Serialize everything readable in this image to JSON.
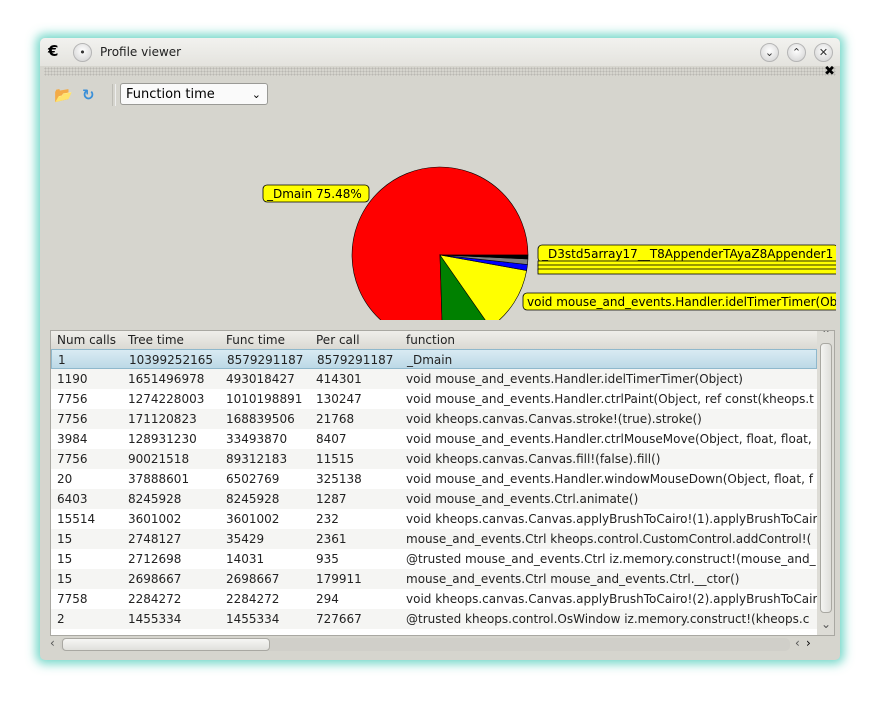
{
  "window": {
    "title": "Profile viewer",
    "icons": [
      "app-logo-icon",
      "pin-icon",
      "minimize-icon",
      "maximize-icon",
      "close-icon"
    ]
  },
  "toolbar": {
    "open_icon": "folder-open-icon",
    "refresh_icon": "refresh-icon",
    "mode_select": "Function time"
  },
  "chart_data": {
    "type": "pie",
    "slices": [
      {
        "label": "_Dmain 75.48%",
        "value": 75.48,
        "color": "#ff0000"
      },
      {
        "label": "void mouse_and_events.Handler.ctrlPaint(Object, ref const",
        "value": 9.2,
        "color": "#008000"
      },
      {
        "label": "void mouse_and_events.Handler.idelTimerTimer(Ob",
        "value": 12.5,
        "color": "#ffff00"
      },
      {
        "label": "",
        "value": 1.1,
        "color": "#0000ff"
      },
      {
        "label": "",
        "value": 1.0,
        "color": "#808080"
      },
      {
        "label": "_D3std5array17__T8AppenderTAyaZ8Appender1",
        "value": 0.72,
        "color": "#000000"
      }
    ]
  },
  "table": {
    "columns": [
      "Num calls",
      "Tree time",
      "Func time",
      "Per call",
      "function"
    ],
    "rows": [
      [
        "1",
        "10399252165",
        "8579291187",
        "8579291187",
        "_Dmain"
      ],
      [
        "1190",
        "1651496978",
        "493018427",
        "414301",
        "void mouse_and_events.Handler.idelTimerTimer(Object)"
      ],
      [
        "7756",
        "1274228003",
        "1010198891",
        "130247",
        "void mouse_and_events.Handler.ctrlPaint(Object, ref const(kheops.t"
      ],
      [
        "7756",
        "171120823",
        "168839506",
        "21768",
        "void kheops.canvas.Canvas.stroke!(true).stroke()"
      ],
      [
        "3984",
        "128931230",
        "33493870",
        "8407",
        "void mouse_and_events.Handler.ctrlMouseMove(Object, float, float,"
      ],
      [
        "7756",
        "90021518",
        "89312183",
        "11515",
        "void kheops.canvas.Canvas.fill!(false).fill()"
      ],
      [
        "20",
        "37888601",
        "6502769",
        "325138",
        "void mouse_and_events.Handler.windowMouseDown(Object, float, f"
      ],
      [
        "6403",
        "8245928",
        "8245928",
        "1287",
        "void mouse_and_events.Ctrl.animate()"
      ],
      [
        "15514",
        "3601002",
        "3601002",
        "232",
        "void kheops.canvas.Canvas.applyBrushToCairo!(1).applyBrushToCair"
      ],
      [
        "15",
        "2748127",
        "35429",
        "2361",
        "mouse_and_events.Ctrl kheops.control.CustomControl.addControl!("
      ],
      [
        "15",
        "2712698",
        "14031",
        "935",
        "@trusted mouse_and_events.Ctrl iz.memory.construct!(mouse_and_"
      ],
      [
        "15",
        "2698667",
        "2698667",
        "179911",
        "mouse_and_events.Ctrl mouse_and_events.Ctrl.__ctor()"
      ],
      [
        "7758",
        "2284272",
        "2284272",
        "294",
        "void kheops.canvas.Canvas.applyBrushToCairo!(2).applyBrushToCair"
      ],
      [
        "2",
        "1455334",
        "1455334",
        "727667",
        "@trusted kheops.control.OsWindow iz.memory.construct!(kheops.c"
      ]
    ],
    "selected_row": 0
  }
}
